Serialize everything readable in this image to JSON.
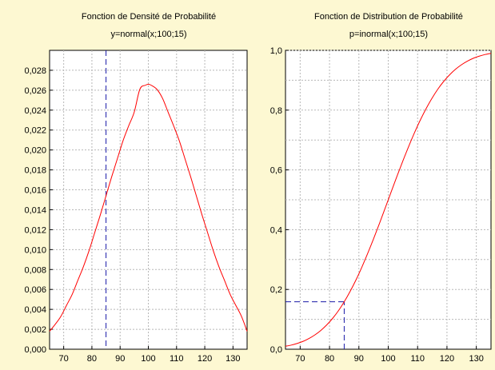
{
  "chart_data": [
    {
      "type": "line",
      "title": "Fonction de Densité de Probabilité",
      "subtitle": "y=normal(x;100;15)",
      "xlabel": "",
      "ylabel": "",
      "xlim": [
        65,
        135
      ],
      "ylim": [
        0,
        0.03
      ],
      "x_ticks": [
        70,
        80,
        90,
        100,
        110,
        120,
        130
      ],
      "x_tick_labels": [
        "70",
        "80",
        "90",
        "100",
        "110",
        "120",
        "130"
      ],
      "y_ticks": [
        0,
        0.002,
        0.004,
        0.006,
        0.008,
        0.01,
        0.012,
        0.014,
        0.016,
        0.018,
        0.02,
        0.022,
        0.024,
        0.026,
        0.028
      ],
      "y_tick_labels": [
        "0,000",
        "0,002",
        "0,004",
        "0,006",
        "0,008",
        "0,010",
        "0,012",
        "0,014",
        "0,016",
        "0,018",
        "0,020",
        "0,022",
        "0,024",
        "0,026",
        "0,028"
      ],
      "grid": true,
      "series": [
        {
          "color": "#ff0000",
          "x": [
            65,
            67,
            69,
            71,
            73,
            75,
            77,
            79,
            81,
            83,
            85,
            87,
            89,
            91,
            93,
            95,
            97,
            99,
            100,
            101,
            103,
            105,
            107,
            109,
            111,
            113,
            115,
            117,
            119,
            121,
            123,
            125,
            127,
            129,
            131,
            133,
            135
          ],
          "y": [
            0.0018,
            0.0025,
            0.0033,
            0.0044,
            0.0055,
            0.0069,
            0.0083,
            0.0099,
            0.0117,
            0.0135,
            0.0154,
            0.0173,
            0.0191,
            0.0209,
            0.0224,
            0.0238,
            0.0261,
            0.0265,
            0.0266,
            0.0265,
            0.0261,
            0.0252,
            0.0238,
            0.0224,
            0.0209,
            0.0191,
            0.0173,
            0.0154,
            0.0135,
            0.0117,
            0.0099,
            0.0083,
            0.0069,
            0.0055,
            0.0044,
            0.0033,
            0.0018
          ]
        }
      ],
      "reference_line": {
        "x": 85,
        "color": "#1a1aa8",
        "style": "dashed"
      }
    },
    {
      "type": "line",
      "title": "Fonction de Distribution de Probabilité",
      "subtitle": "p=inormal(x;100;15)",
      "xlabel": "",
      "ylabel": "",
      "xlim": [
        65,
        135
      ],
      "ylim": [
        0,
        1
      ],
      "x_ticks": [
        70,
        80,
        90,
        100,
        110,
        120,
        130
      ],
      "x_tick_labels": [
        "70",
        "80",
        "90",
        "100",
        "110",
        "120",
        "130"
      ],
      "y_ticks": [
        0,
        0.2,
        0.4,
        0.6,
        0.8,
        1
      ],
      "y_tick_labels": [
        "0,0",
        "0,2",
        "0,4",
        "0,6",
        "0,8",
        "1,0"
      ],
      "minor_y_gridlines": [
        0.1,
        0.3,
        0.5,
        0.7,
        0.9
      ],
      "grid": true,
      "series": [
        {
          "color": "#ff0000",
          "x": [
            65,
            67,
            69,
            71,
            73,
            75,
            77,
            79,
            81,
            83,
            85,
            87,
            89,
            91,
            93,
            95,
            97,
            99,
            100,
            101,
            103,
            105,
            107,
            109,
            111,
            113,
            115,
            117,
            119,
            121,
            123,
            125,
            127,
            129,
            131,
            133,
            135
          ],
          "y": [
            0.0099,
            0.0139,
            0.0194,
            0.0264,
            0.0359,
            0.0478,
            0.0626,
            0.0808,
            0.1026,
            0.1283,
            0.1587,
            0.1932,
            0.2316,
            0.2743,
            0.3206,
            0.3694,
            0.4207,
            0.4734,
            0.5,
            0.5266,
            0.5793,
            0.6306,
            0.6794,
            0.7257,
            0.7684,
            0.8068,
            0.8413,
            0.8717,
            0.8974,
            0.9192,
            0.9374,
            0.9522,
            0.9641,
            0.9736,
            0.9806,
            0.9861,
            0.9901
          ]
        }
      ],
      "reference_lines": [
        {
          "orientation": "vertical",
          "x": 85,
          "from_y": 0,
          "to_y": 0.1587,
          "color": "#1a1aa8",
          "style": "dashed"
        },
        {
          "orientation": "horizontal",
          "y": 0.1587,
          "from_x": 65,
          "to_x": 85,
          "color": "#1a1aa8",
          "style": "dashed"
        }
      ]
    }
  ]
}
